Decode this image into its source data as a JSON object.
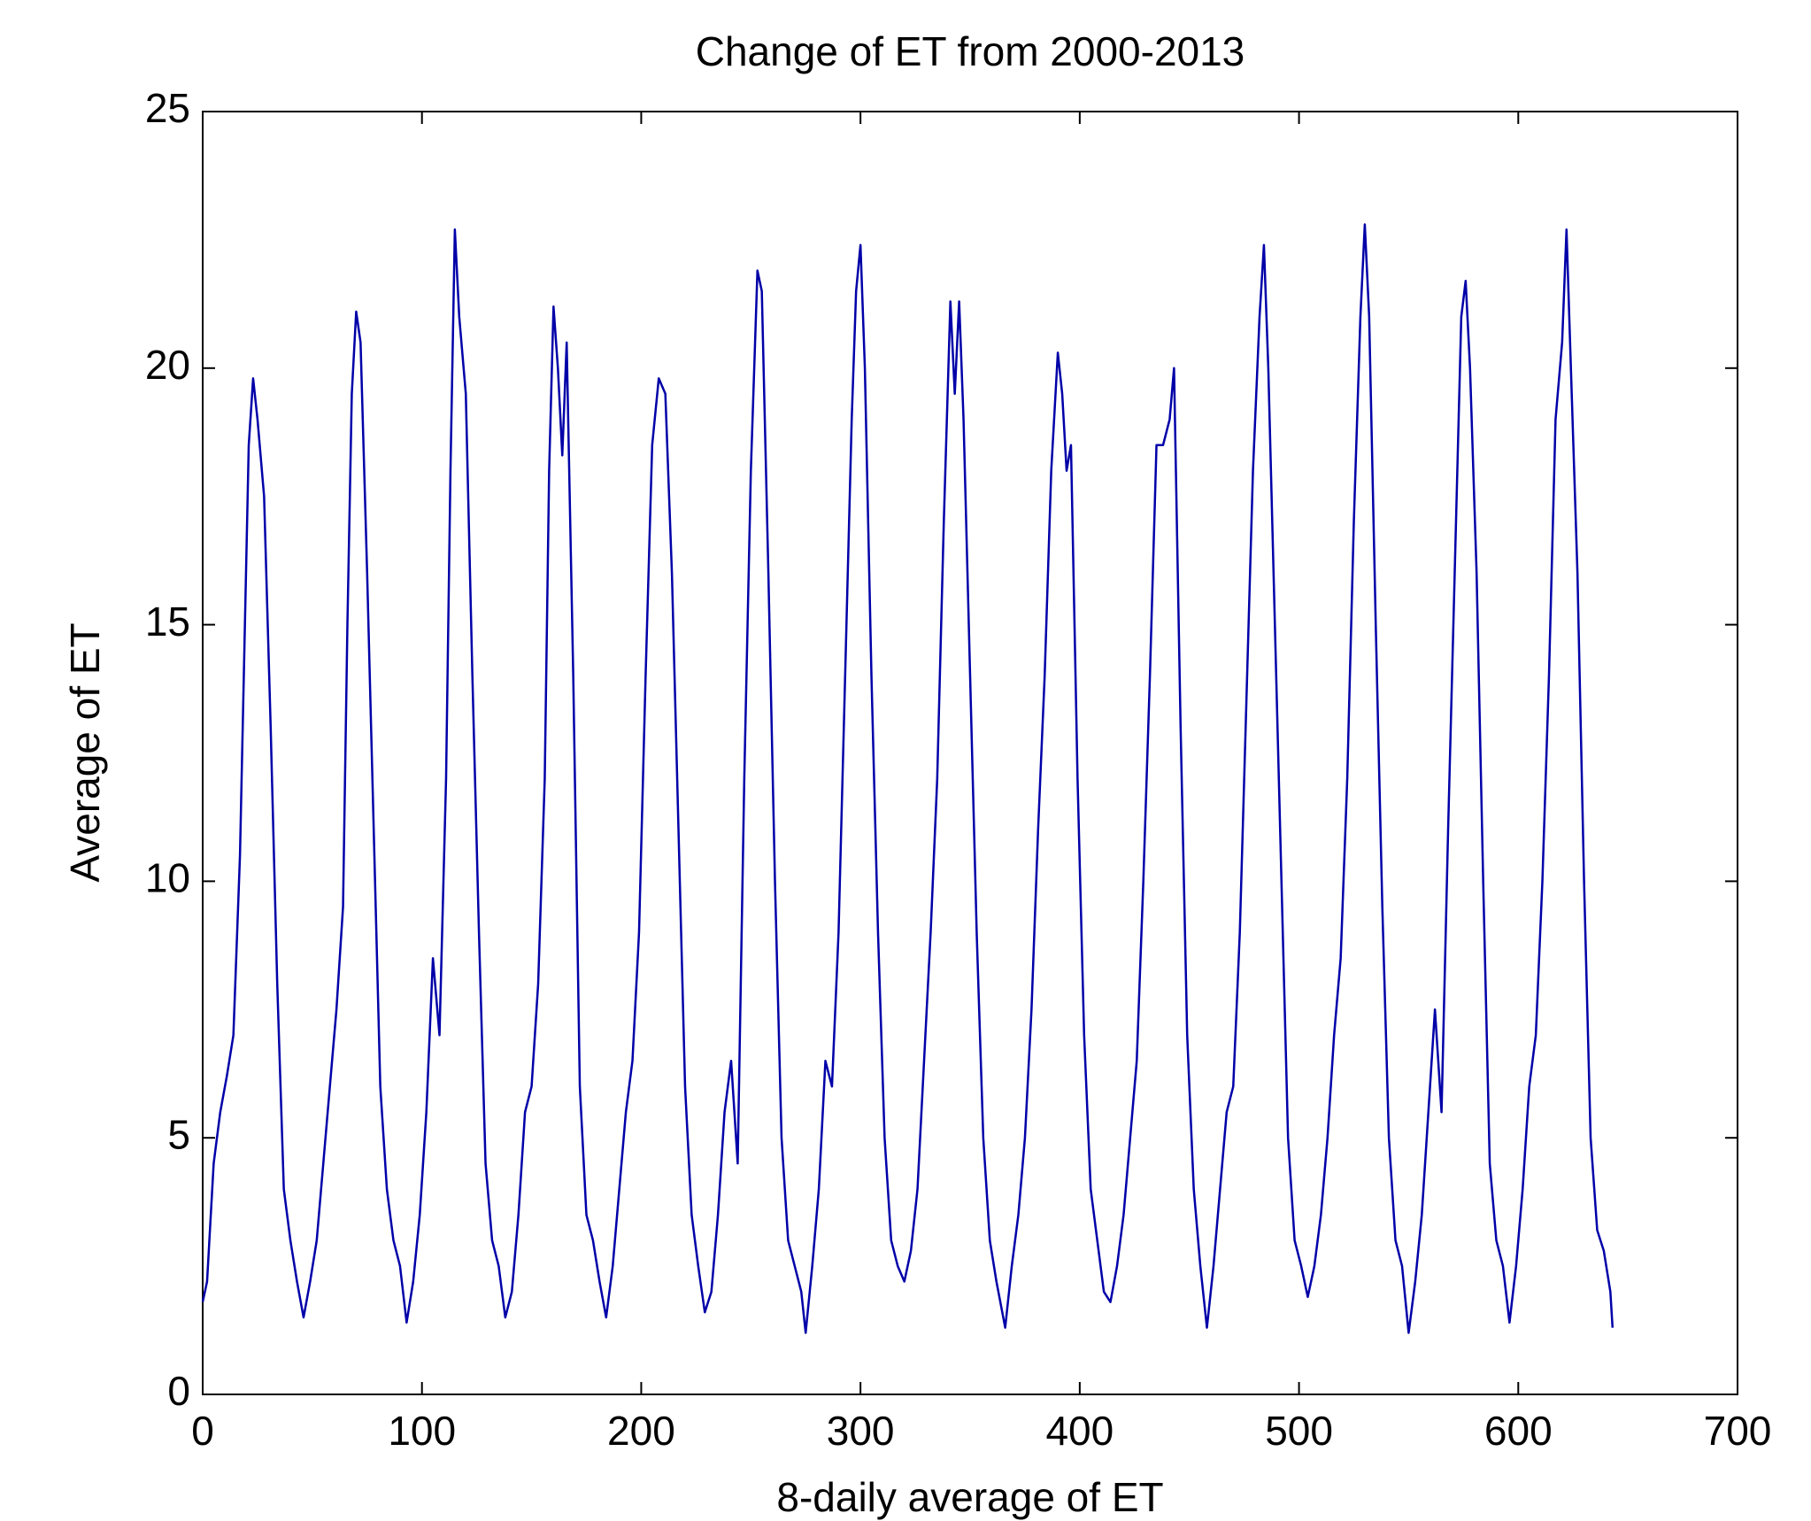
{
  "chart_data": {
    "type": "line",
    "title": "Change of ET from 2000-2013",
    "xlabel": "8-daily average of ET",
    "ylabel": "Average of ET",
    "xlim": [
      0,
      700
    ],
    "xticks": [
      0,
      100,
      200,
      300,
      400,
      500,
      600,
      700
    ],
    "ylim": [
      0,
      25
    ],
    "yticks": [
      0,
      5,
      10,
      15,
      20,
      25
    ],
    "series": [
      {
        "color": "#0000a8",
        "x": [
          0,
          2,
          5,
          8,
          11,
          14,
          17,
          19,
          21,
          23,
          25,
          28,
          31,
          34,
          37,
          40,
          43,
          46,
          49,
          52,
          55,
          58,
          61,
          64,
          66,
          68,
          70,
          72,
          75,
          78,
          81,
          84,
          87,
          90,
          93,
          96,
          99,
          102,
          105,
          108,
          111,
          113,
          115,
          117,
          120,
          123,
          126,
          129,
          132,
          135,
          138,
          141,
          144,
          147,
          150,
          153,
          156,
          158,
          160,
          162,
          164,
          166,
          169,
          172,
          175,
          178,
          181,
          184,
          187,
          190,
          193,
          196,
          199,
          202,
          205,
          208,
          211,
          214,
          217,
          220,
          223,
          226,
          229,
          232,
          235,
          238,
          241,
          244,
          247,
          250,
          253,
          255,
          258,
          261,
          264,
          267,
          270,
          273,
          275,
          278,
          281,
          284,
          287,
          290,
          293,
          296,
          298,
          300,
          302,
          305,
          308,
          311,
          314,
          317,
          320,
          323,
          326,
          329,
          332,
          335,
          338,
          341,
          343,
          345,
          347,
          350,
          353,
          356,
          359,
          362,
          366,
          369,
          372,
          375,
          378,
          381,
          384,
          387,
          390,
          392,
          394,
          396,
          399,
          402,
          405,
          408,
          411,
          414,
          417,
          420,
          423,
          426,
          429,
          432,
          435,
          438,
          441,
          443,
          446,
          449,
          452,
          455,
          458,
          461,
          464,
          467,
          470,
          473,
          476,
          479,
          482,
          484,
          486,
          489,
          492,
          495,
          498,
          501,
          504,
          507,
          510,
          513,
          516,
          519,
          522,
          525,
          528,
          530,
          532,
          535,
          538,
          541,
          544,
          547,
          550,
          553,
          556,
          559,
          562,
          565,
          568,
          571,
          574,
          576,
          578,
          581,
          584,
          587,
          590,
          593,
          596,
          599,
          602,
          605,
          608,
          611,
          614,
          617,
          620,
          622,
          624,
          627,
          630,
          633,
          636,
          639,
          642,
          643
        ],
        "values": [
          1.8,
          2.2,
          4.5,
          5.5,
          6.2,
          7.0,
          10.5,
          14.5,
          18.5,
          19.8,
          19.0,
          17.5,
          13,
          8,
          4,
          3,
          2.2,
          1.5,
          2.2,
          3,
          4.5,
          6,
          7.5,
          9.5,
          15,
          19.5,
          21.1,
          20.5,
          16,
          11,
          6,
          4,
          3,
          2.5,
          1.4,
          2.2,
          3.5,
          5.5,
          8.5,
          7,
          12,
          18,
          22.7,
          21,
          19.5,
          14,
          9,
          4.5,
          3,
          2.5,
          1.5,
          2,
          3.5,
          5.5,
          6,
          8,
          12,
          18,
          21.2,
          20,
          18.3,
          20.5,
          14,
          6,
          3.5,
          3,
          2.2,
          1.5,
          2.5,
          4,
          5.5,
          6.5,
          9,
          14,
          18.5,
          19.8,
          19.5,
          16,
          11,
          6,
          3.5,
          2.5,
          1.6,
          2,
          3.5,
          5.5,
          6.5,
          4.5,
          12,
          18,
          21.9,
          21.5,
          16,
          10,
          5,
          3,
          2.5,
          2,
          1.2,
          2.5,
          4,
          6.5,
          6,
          9,
          14,
          19,
          21.5,
          22.4,
          20,
          14,
          9,
          5,
          3,
          2.5,
          2.2,
          2.8,
          4,
          6.5,
          9,
          12,
          17,
          21.3,
          19.5,
          21.3,
          19,
          14,
          9,
          5,
          3,
          2.2,
          1.3,
          2.5,
          3.5,
          5,
          7.5,
          11,
          14,
          18,
          20.3,
          19.5,
          18,
          18.5,
          12,
          7,
          4,
          3,
          2,
          1.8,
          2.5,
          3.5,
          5,
          6.5,
          10,
          14,
          18.5,
          18.5,
          19,
          20,
          13,
          7,
          4,
          2.5,
          1.3,
          2.5,
          4,
          5.5,
          6,
          9,
          13.5,
          18,
          21,
          22.4,
          20,
          15,
          10,
          5,
          3,
          2.5,
          1.9,
          2.5,
          3.5,
          5,
          7,
          8.5,
          12,
          17,
          21,
          22.8,
          21,
          15,
          9.5,
          5,
          3,
          2.5,
          1.2,
          2.2,
          3.5,
          5.5,
          7.5,
          5.5,
          11,
          16,
          21,
          21.7,
          20,
          16,
          10,
          4.5,
          3,
          2.5,
          1.4,
          2.5,
          4,
          6,
          7,
          10,
          14,
          19,
          20.5,
          22.7,
          20,
          16,
          10,
          5,
          3.2,
          2.8,
          2,
          1.3
        ]
      }
    ]
  }
}
